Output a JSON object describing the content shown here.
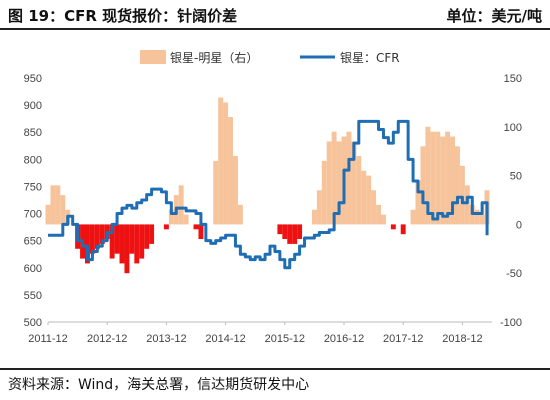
{
  "header": {
    "title": "图 19：CFR 现货报价：针阔价差",
    "unit": "单位：美元/吨"
  },
  "source": "资料来源：Wind，海关总署，信达期货研发中心",
  "colors": {
    "line": "#1f6db3",
    "bar_positive": "#f6c39b",
    "bar_negative": "#ee1111"
  },
  "chart_data": {
    "type": "line",
    "title": "",
    "xlabel": "",
    "ylabel_left": "",
    "ylabel_right": "",
    "x_tick_labels": [
      "2011-12",
      "2012-12",
      "2013-12",
      "2014-12",
      "2015-12",
      "2016-12",
      "2017-12",
      "2018-12"
    ],
    "x_range": [
      "2011-12",
      "2019-06"
    ],
    "left_axis": {
      "ylim": [
        500,
        950
      ],
      "ticks": [
        500,
        550,
        600,
        650,
        700,
        750,
        800,
        850,
        900,
        950
      ]
    },
    "right_axis": {
      "ylim": [
        -100,
        150
      ],
      "ticks": [
        -100,
        -50,
        0,
        50,
        100,
        150
      ]
    },
    "grid": false,
    "legend_position": "top",
    "series": [
      {
        "name": "银星-明星（右）",
        "type": "bar",
        "axis": "right",
        "x": [
          "2011-12",
          "2012-01",
          "2012-02",
          "2012-03",
          "2012-04",
          "2012-05",
          "2012-06",
          "2012-07",
          "2012-08",
          "2012-09",
          "2012-10",
          "2012-11",
          "2012-12",
          "2013-01",
          "2013-02",
          "2013-03",
          "2013-04",
          "2013-05",
          "2013-06",
          "2013-07",
          "2013-08",
          "2013-09",
          "2013-10",
          "2013-11",
          "2013-12",
          "2014-01",
          "2014-02",
          "2014-03",
          "2014-04",
          "2014-05",
          "2014-06",
          "2014-07",
          "2014-08",
          "2014-09",
          "2014-10",
          "2014-11",
          "2014-12",
          "2015-01",
          "2015-02",
          "2015-03",
          "2015-04",
          "2015-05",
          "2015-06",
          "2015-07",
          "2015-08",
          "2015-09",
          "2015-10",
          "2015-11",
          "2015-12",
          "2016-01",
          "2016-02",
          "2016-03",
          "2016-04",
          "2016-05",
          "2016-06",
          "2016-07",
          "2016-08",
          "2016-09",
          "2016-10",
          "2016-11",
          "2016-12",
          "2017-01",
          "2017-02",
          "2017-03",
          "2017-04",
          "2017-05",
          "2017-06",
          "2017-07",
          "2017-08",
          "2017-09",
          "2017-10",
          "2017-11",
          "2017-12",
          "2018-01",
          "2018-02",
          "2018-03",
          "2018-04",
          "2018-05",
          "2018-06",
          "2018-07",
          "2018-08",
          "2018-09",
          "2018-10",
          "2018-11",
          "2018-12",
          "2019-01",
          "2019-02",
          "2019-03",
          "2019-04",
          "2019-05"
        ],
        "values": [
          20,
          40,
          40,
          30,
          15,
          0,
          -25,
          -35,
          -40,
          -30,
          -25,
          -20,
          -15,
          -35,
          -30,
          -40,
          -50,
          -30,
          -40,
          -35,
          -25,
          -20,
          0,
          0,
          -5,
          15,
          30,
          40,
          10,
          0,
          -5,
          -15,
          0,
          0,
          65,
          130,
          125,
          110,
          70,
          20,
          0,
          0,
          0,
          0,
          0,
          0,
          0,
          -10,
          -15,
          -20,
          -20,
          -15,
          0,
          0,
          15,
          35,
          65,
          85,
          95,
          85,
          90,
          95,
          85,
          70,
          55,
          50,
          35,
          20,
          10,
          0,
          -5,
          0,
          -10,
          0,
          15,
          45,
          80,
          100,
          95,
          95,
          90,
          95,
          90,
          80,
          60,
          40,
          20,
          15,
          10,
          35
        ]
      },
      {
        "name": "银星：CFR",
        "type": "line",
        "axis": "left",
        "x": [
          "2011-12",
          "2012-01",
          "2012-02",
          "2012-03",
          "2012-04",
          "2012-05",
          "2012-06",
          "2012-07",
          "2012-08",
          "2012-09",
          "2012-10",
          "2012-11",
          "2012-12",
          "2013-01",
          "2013-02",
          "2013-03",
          "2013-04",
          "2013-05",
          "2013-06",
          "2013-07",
          "2013-08",
          "2013-09",
          "2013-10",
          "2013-11",
          "2013-12",
          "2014-01",
          "2014-02",
          "2014-03",
          "2014-04",
          "2014-05",
          "2014-06",
          "2014-07",
          "2014-08",
          "2014-09",
          "2014-10",
          "2014-11",
          "2014-12",
          "2015-01",
          "2015-02",
          "2015-03",
          "2015-04",
          "2015-05",
          "2015-06",
          "2015-07",
          "2015-08",
          "2015-09",
          "2015-10",
          "2015-11",
          "2015-12",
          "2016-01",
          "2016-02",
          "2016-03",
          "2016-04",
          "2016-05",
          "2016-06",
          "2016-07",
          "2016-08",
          "2016-09",
          "2016-10",
          "2016-11",
          "2016-12",
          "2017-01",
          "2017-02",
          "2017-03",
          "2017-04",
          "2017-05",
          "2017-06",
          "2017-07",
          "2017-08",
          "2017-09",
          "2017-10",
          "2017-11",
          "2017-12",
          "2018-01",
          "2018-02",
          "2018-03",
          "2018-04",
          "2018-05",
          "2018-06",
          "2018-07",
          "2018-08",
          "2018-09",
          "2018-10",
          "2018-11",
          "2018-12",
          "2019-01",
          "2019-02",
          "2019-03",
          "2019-04",
          "2019-05"
        ],
        "values": [
          660,
          660,
          660,
          680,
          695,
          680,
          650,
          640,
          615,
          630,
          640,
          650,
          665,
          680,
          700,
          710,
          715,
          710,
          720,
          725,
          735,
          745,
          745,
          740,
          720,
          700,
          710,
          710,
          705,
          705,
          700,
          680,
          650,
          645,
          650,
          655,
          660,
          660,
          640,
          625,
          620,
          615,
          620,
          615,
          625,
          640,
          630,
          615,
          600,
          615,
          625,
          640,
          655,
          655,
          660,
          665,
          665,
          670,
          700,
          720,
          780,
          800,
          830,
          870,
          870,
          870,
          870,
          855,
          840,
          830,
          850,
          870,
          870,
          800,
          760,
          740,
          720,
          700,
          690,
          700,
          695,
          700,
          720,
          730,
          720,
          730,
          700,
          700,
          720,
          660
        ]
      }
    ],
    "legend": [
      "银星-明星（右）",
      "银星：CFR"
    ]
  }
}
